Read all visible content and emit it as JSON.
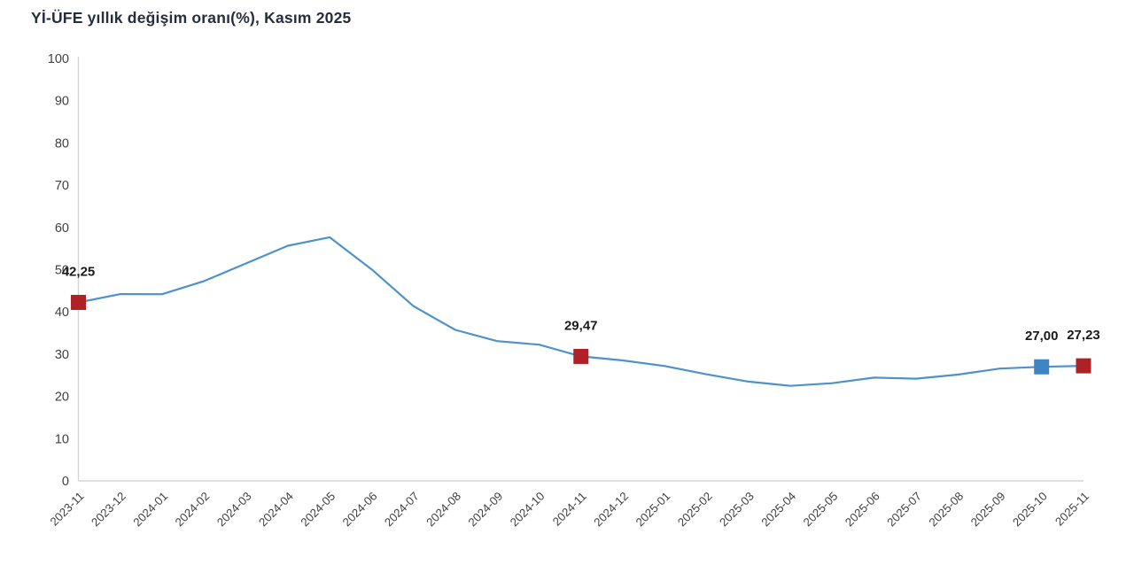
{
  "title": "Yİ-ÜFE yıllık değişim oranı(%), Kasım 2025",
  "colors": {
    "line": "#4e92cc",
    "highlight_red": "#b02127",
    "highlight_blue": "#3d85c3",
    "axis_line": "#d6d6d6",
    "tick_text": "#404040",
    "annotation_text": "#1a1a1a",
    "title_text": "#262e3d",
    "background": "#ffffff"
  },
  "chart_data": {
    "type": "line",
    "title": "Yİ-ÜFE yıllık değişim oranı(%), Kasım 2025",
    "x": [
      "2023-11",
      "2023-12",
      "2024-01",
      "2024-02",
      "2024-03",
      "2024-04",
      "2024-05",
      "2024-06",
      "2024-07",
      "2024-08",
      "2024-09",
      "2024-10",
      "2024-11",
      "2024-12",
      "2025-01",
      "2025-02",
      "2025-03",
      "2025-04",
      "2025-05",
      "2025-06",
      "2025-07",
      "2025-08",
      "2025-09",
      "2025-10",
      "2025-11"
    ],
    "values": [
      42.25,
      44.22,
      44.2,
      47.29,
      51.47,
      55.66,
      57.68,
      50.09,
      41.37,
      35.75,
      33.09,
      32.24,
      29.47,
      28.52,
      27.2,
      25.21,
      23.5,
      22.5,
      23.13,
      24.45,
      24.19,
      25.16,
      26.59,
      27.0,
      27.23
    ],
    "xlabel": "",
    "ylabel": "",
    "ylim": [
      0,
      100
    ],
    "ytick_step": 10,
    "ytick_labels": [
      "0",
      "10",
      "20",
      "30",
      "40",
      "50",
      "60",
      "70",
      "80",
      "90",
      "100"
    ],
    "grid": false,
    "legend": null,
    "annotated_points": [
      {
        "index": 0,
        "x": "2023-11",
        "value": 42.25,
        "label": "42,25",
        "marker": "square",
        "marker_color": "#b02127"
      },
      {
        "index": 12,
        "x": "2024-11",
        "value": 29.47,
        "label": "29,47",
        "marker": "square",
        "marker_color": "#b02127"
      },
      {
        "index": 23,
        "x": "2025-10",
        "value": 27.0,
        "label": "27,00",
        "marker": "square",
        "marker_color": "#3d85c3"
      },
      {
        "index": 24,
        "x": "2025-11",
        "value": 27.23,
        "label": "27,23",
        "marker": "square",
        "marker_color": "#b02127"
      }
    ]
  }
}
